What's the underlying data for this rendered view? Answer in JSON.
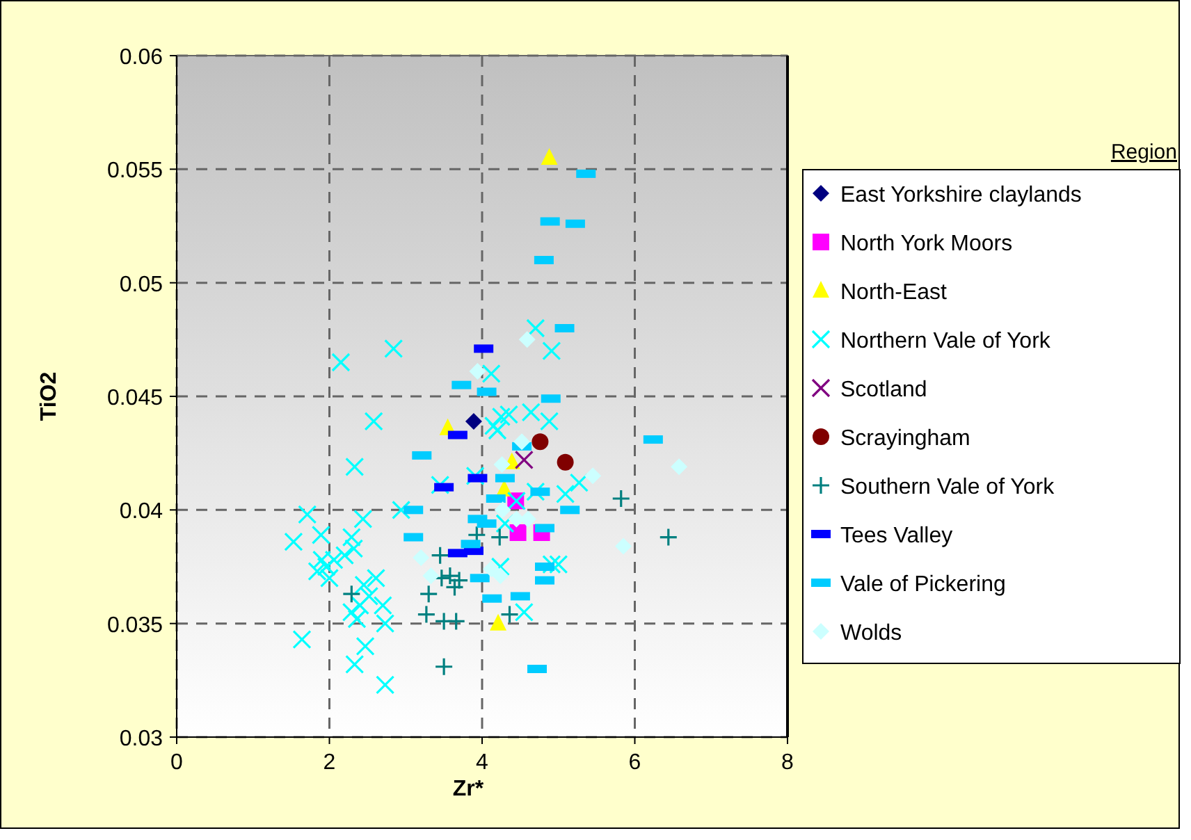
{
  "chart_data": {
    "type": "scatter",
    "xlabel": "Zr*",
    "ylabel": "TiO2",
    "legend_title": "Region",
    "legend": "right",
    "grid": true,
    "line_style": "dashed",
    "xlim": [
      0,
      8
    ],
    "xticks": [
      0,
      2,
      4,
      6,
      8
    ],
    "ylim": [
      0.03,
      0.06
    ],
    "yticks": [
      0.03,
      0.035,
      0.04,
      0.045,
      0.05,
      0.055,
      0.06
    ],
    "series": [
      {
        "name": "East Yorkshire claylands",
        "color": "#000080",
        "marker": "diamond",
        "x": [
          3.89
        ],
        "values": [
          0.0439
        ]
      },
      {
        "name": "North York Moors",
        "color": "#ff00ff",
        "marker": "square",
        "x": [
          4.44,
          4.47,
          4.78
        ],
        "values": [
          0.0404,
          0.039,
          0.039
        ]
      },
      {
        "name": "North-East",
        "color": "#ffff00",
        "marker": "triangle",
        "x": [
          4.88,
          3.55,
          4.39,
          4.29,
          4.21
        ],
        "values": [
          0.0555,
          0.0436,
          0.0421,
          0.0409,
          0.035
        ]
      },
      {
        "name": "Northern Vale of York",
        "color": "#00ffff",
        "marker": "cross",
        "x": [
          2.15,
          2.84,
          2.58,
          2.33,
          3.45,
          2.94,
          1.71,
          2.44,
          1.89,
          1.53,
          2.29,
          2.32,
          1.9,
          1.96,
          1.84,
          2.0,
          2.06,
          2.2,
          2.61,
          2.45,
          2.29,
          2.4,
          2.7,
          2.52,
          2.36,
          2.73,
          1.64,
          2.47,
          2.33,
          2.73,
          3.91,
          4.7,
          4.91,
          4.12,
          4.15,
          4.25,
          4.35,
          4.2,
          4.64,
          4.88,
          4.7,
          5.09,
          5.27,
          4.45,
          4.3,
          4.24,
          4.91,
          4.55,
          5.0
        ],
        "values": [
          0.0465,
          0.0471,
          0.0439,
          0.0419,
          0.0411,
          0.04,
          0.0398,
          0.0396,
          0.0389,
          0.0386,
          0.0388,
          0.0383,
          0.0378,
          0.0375,
          0.0373,
          0.037,
          0.0378,
          0.038,
          0.037,
          0.0367,
          0.0355,
          0.0358,
          0.0358,
          0.0362,
          0.0352,
          0.035,
          0.0343,
          0.034,
          0.0332,
          0.0323,
          0.0415,
          0.048,
          0.047,
          0.046,
          0.0437,
          0.0441,
          0.0442,
          0.0435,
          0.0443,
          0.0439,
          0.0408,
          0.0407,
          0.0412,
          0.0404,
          0.0394,
          0.0375,
          0.0376,
          0.0355,
          0.0376
        ]
      },
      {
        "name": "Scotland",
        "color": "#800080",
        "marker": "cross",
        "x": [
          4.55
        ],
        "values": [
          0.0422
        ]
      },
      {
        "name": "Scrayingham",
        "color": "#800000",
        "marker": "circle",
        "x": [
          4.76,
          5.09
        ],
        "values": [
          0.043,
          0.0421
        ]
      },
      {
        "name": "Southern Vale of York",
        "color": "#008080",
        "marker": "plus",
        "x": [
          3.93,
          4.23,
          3.45,
          3.47,
          3.58,
          3.7,
          3.64,
          3.3,
          3.27,
          3.5,
          3.66,
          3.5,
          2.29,
          4.36,
          5.82,
          6.44
        ],
        "values": [
          0.0389,
          0.0388,
          0.038,
          0.037,
          0.0371,
          0.0369,
          0.0366,
          0.0363,
          0.0354,
          0.0351,
          0.0351,
          0.0331,
          0.0363,
          0.0354,
          0.0405,
          0.0388
        ]
      },
      {
        "name": "Tees Valley",
        "color": "#0000ff",
        "x": [
          4.02,
          3.68,
          3.5,
          3.94,
          3.68,
          3.89
        ],
        "values": [
          0.0471,
          0.0433,
          0.041,
          0.0414,
          0.0381,
          0.0382
        ]
      },
      {
        "name": "Vale of Pickering",
        "color": "#00ccff",
        "x": [
          5.36,
          4.89,
          5.22,
          4.81,
          5.08,
          4.06,
          3.73,
          4.9,
          4.52,
          4.3,
          4.76,
          5.15,
          4.18,
          3.94,
          4.06,
          4.82,
          3.85,
          3.97,
          4.82,
          4.82,
          4.13,
          4.5,
          3.21,
          3.1,
          3.1,
          4.72,
          6.24
        ],
        "values": [
          0.0548,
          0.0527,
          0.0526,
          0.051,
          0.048,
          0.0452,
          0.0455,
          0.0449,
          0.0428,
          0.0414,
          0.0408,
          0.04,
          0.0405,
          0.0396,
          0.0394,
          0.0392,
          0.0385,
          0.037,
          0.0375,
          0.0369,
          0.0361,
          0.0362,
          0.0424,
          0.04,
          0.0388,
          0.033,
          0.0431
        ]
      },
      {
        "name": "Wolds",
        "color": "#ccffff",
        "marker": "diamond",
        "x": [
          3.94,
          3.2,
          3.33,
          4.59,
          4.52,
          4.26,
          4.27,
          4.45,
          4.6,
          4.12,
          4.24,
          5.45,
          6.58,
          5.85
        ],
        "values": [
          0.0461,
          0.0379,
          0.0371,
          0.0475,
          0.043,
          0.042,
          0.04,
          0.0396,
          0.0396,
          0.0374,
          0.0371,
          0.0415,
          0.0419,
          0.0384
        ]
      }
    ]
  }
}
